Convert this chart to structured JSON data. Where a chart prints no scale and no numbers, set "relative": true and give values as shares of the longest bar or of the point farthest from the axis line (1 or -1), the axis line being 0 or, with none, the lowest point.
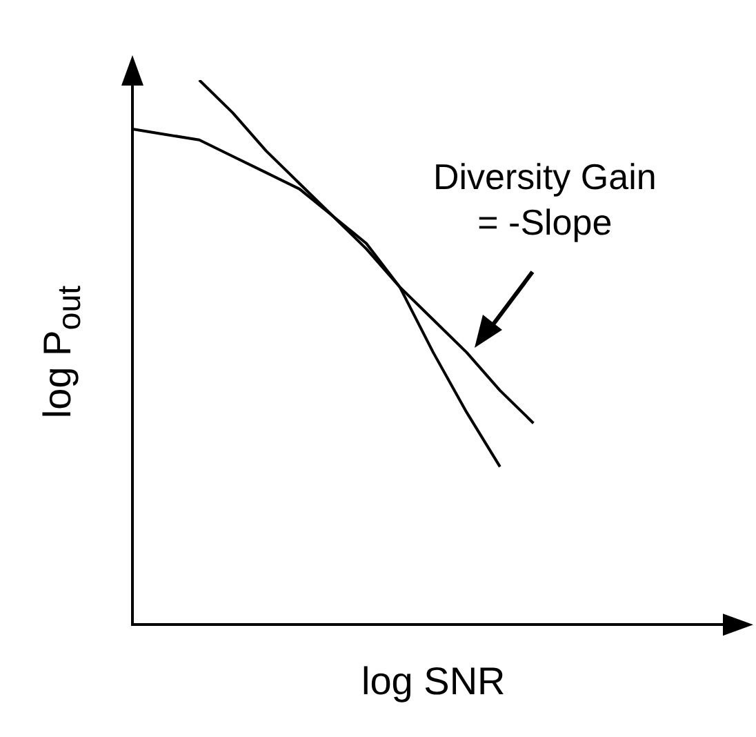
{
  "chart_data": {
    "type": "line",
    "relative": true,
    "xlabel": "log SNR",
    "ylabel": "log P$_{out}$",
    "marker": "none",
    "line_style": "solid",
    "annotations": [
      "Diversity Gain\n= -Slope"
    ],
    "categories": [
      null,
      null,
      null,
      null,
      null,
      null,
      null,
      null,
      null,
      null,
      null,
      null,
      null,
      null,
      null,
      null,
      null,
      null,
      null
    ],
    "series": [
      {
        "color": "#000000",
        "values": [
          0.91,
          0.9,
          0.89,
          0.86,
          0.83,
          0.8,
          0.75,
          0.7,
          0.62,
          0.5,
          0.39,
          0.29,
          null,
          null,
          null,
          null,
          null,
          null,
          null
        ]
      },
      {
        "color": "#000000",
        "values": [
          null,
          null,
          1.0,
          0.94,
          0.87,
          0.81,
          0.75,
          0.69,
          0.62,
          0.56,
          0.5,
          0.43,
          0.37,
          null,
          null,
          null,
          null,
          null,
          null
        ]
      }
    ]
  }
}
